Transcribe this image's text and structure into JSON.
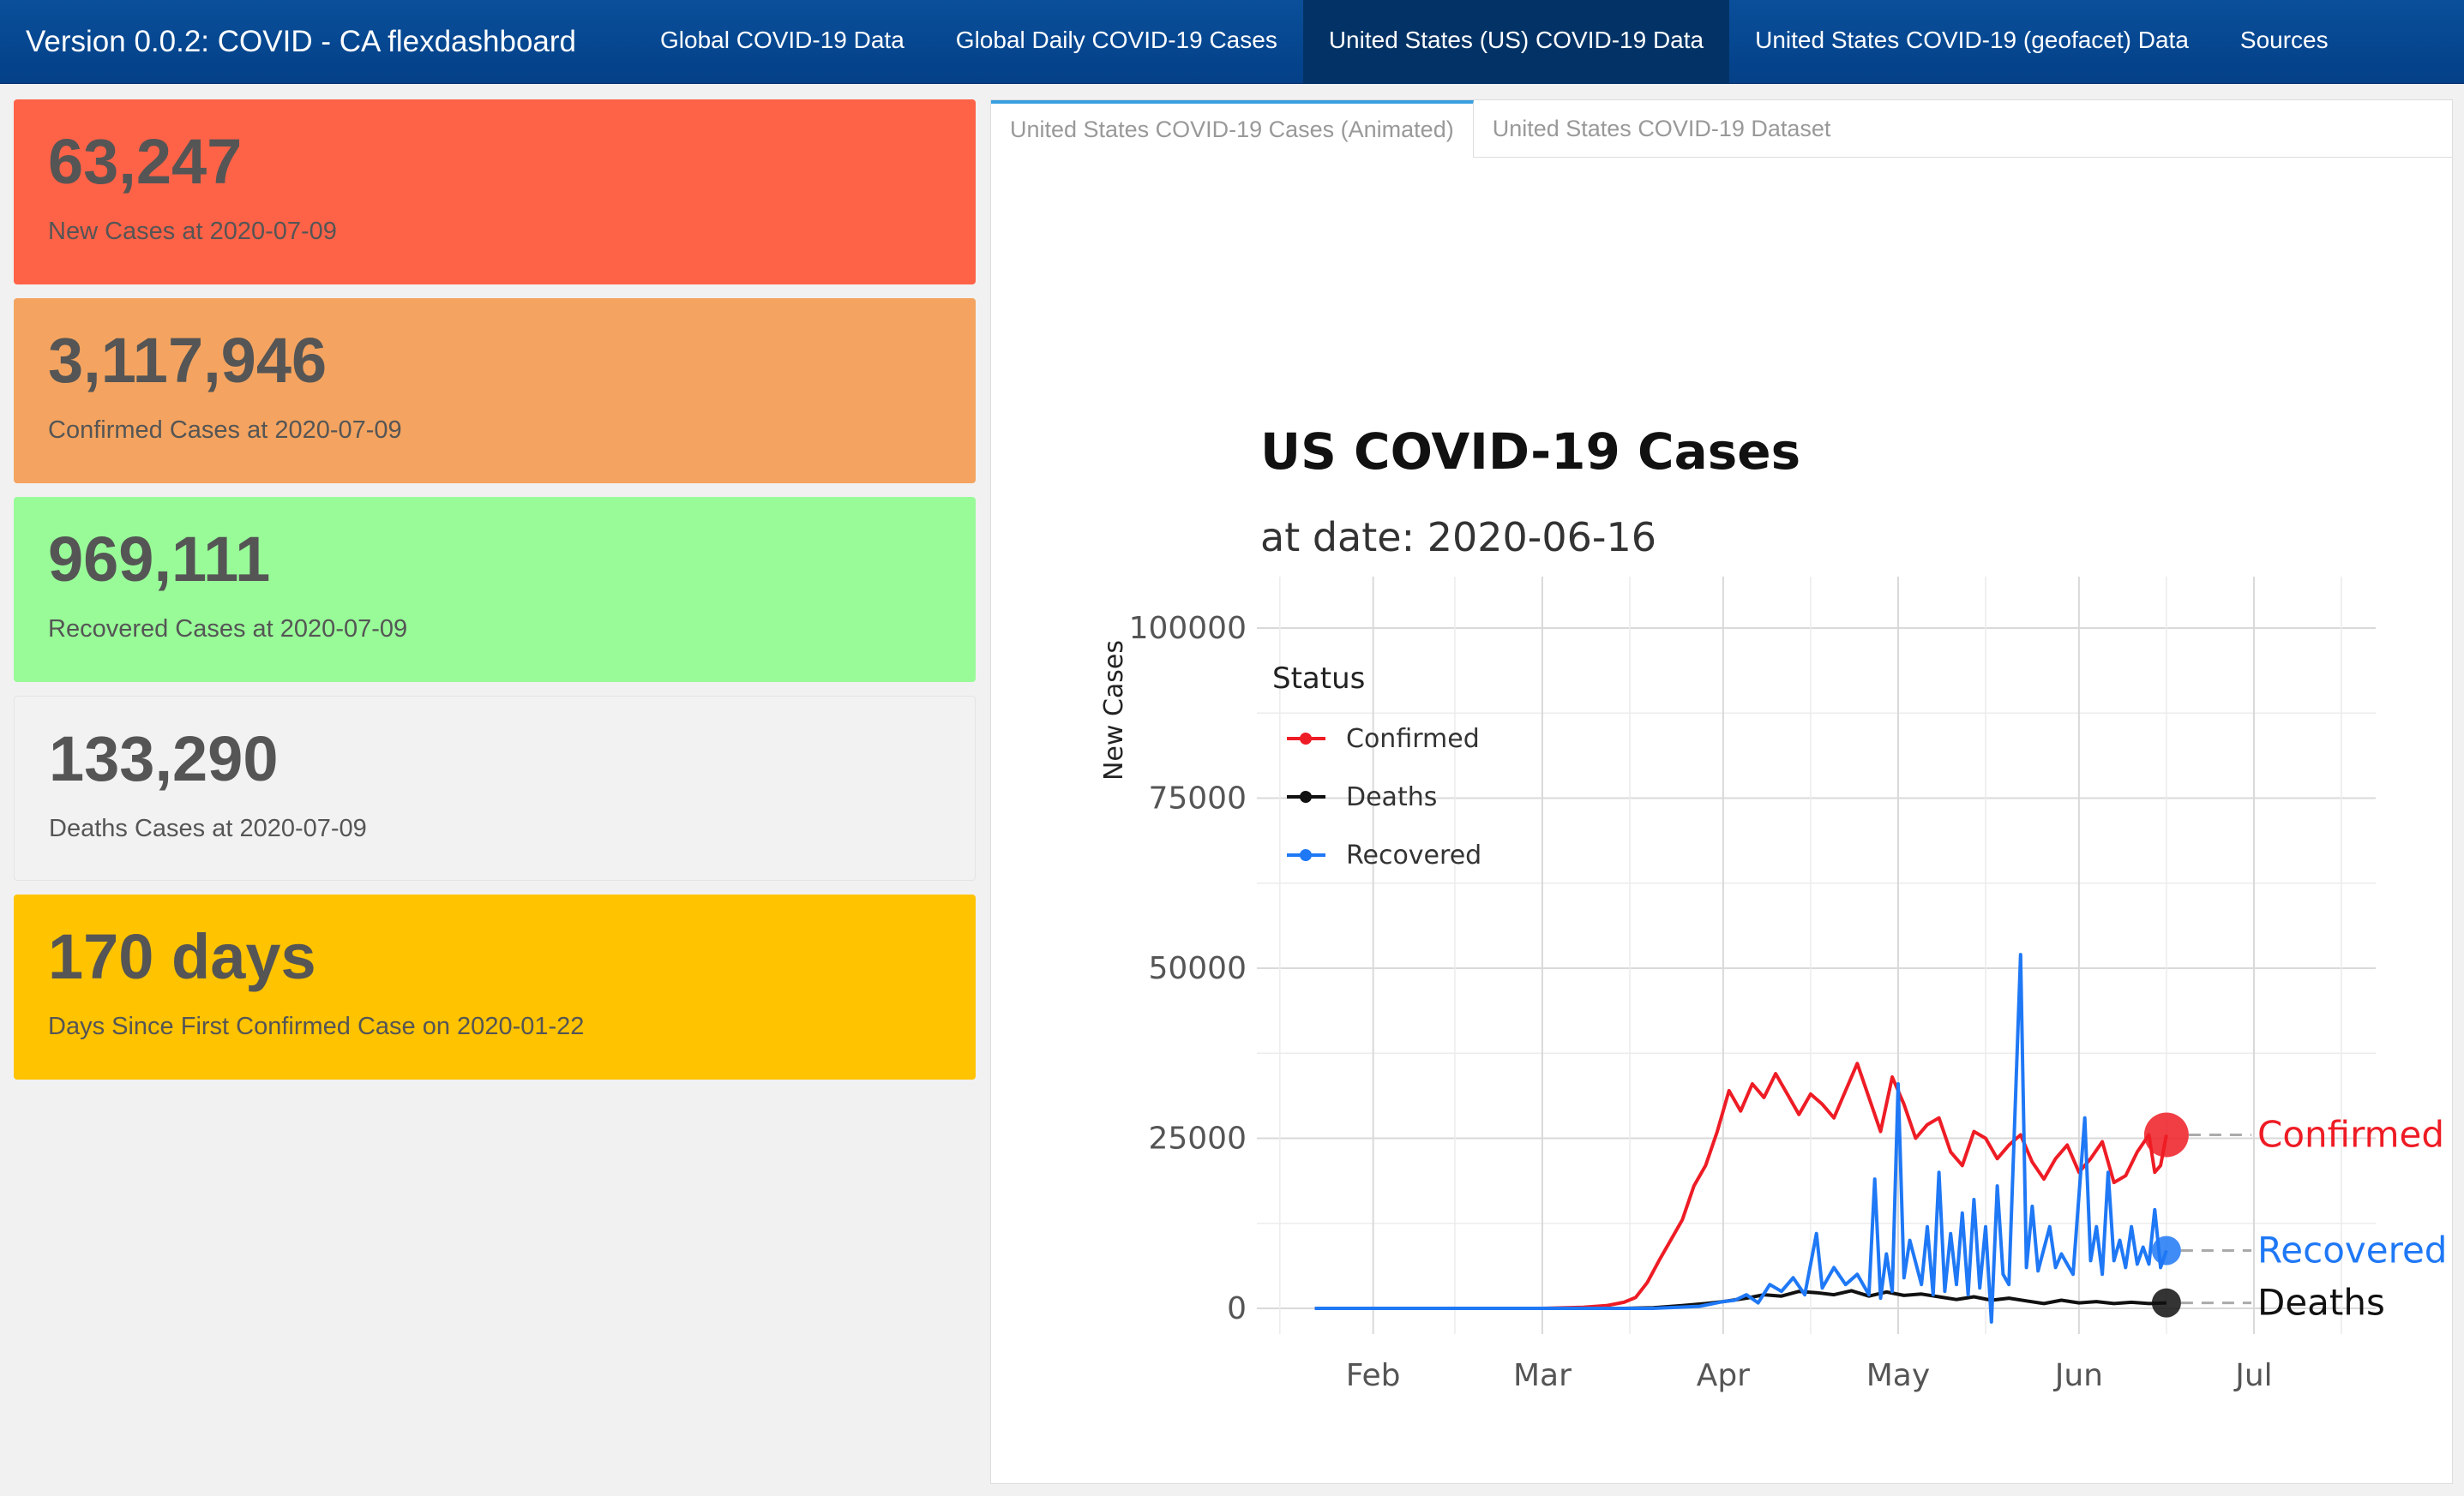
{
  "navbar": {
    "brand": "Version 0.0.2: COVID - CA flexdashboard",
    "items": [
      {
        "label": "Global COVID-19 Data",
        "active": false
      },
      {
        "label": "Global Daily COVID-19 Cases",
        "active": false
      },
      {
        "label": "United States (US) COVID-19 Data",
        "active": true
      },
      {
        "label": "United States COVID-19 (geofacet) Data",
        "active": false
      },
      {
        "label": "Sources",
        "active": false
      }
    ]
  },
  "valueboxes": [
    {
      "value": "63,247",
      "caption": "New Cases at 2020-07-09",
      "color": "#ff6347"
    },
    {
      "value": "3,117,946",
      "caption": "Confirmed Cases at 2020-07-09",
      "color": "#f4a460"
    },
    {
      "value": "969,111",
      "caption": "Recovered Cases at 2020-07-09",
      "color": "#98fb98"
    },
    {
      "value": "133,290",
      "caption": "Deaths Cases at 2020-07-09",
      "color": "#f2f2f2"
    },
    {
      "value": "170 days",
      "caption": "Days Since First Confirmed Case on 2020-01-22",
      "color": "#ffc300"
    }
  ],
  "tabs": [
    {
      "label": "United States COVID-19 Cases (Animated)",
      "active": true
    },
    {
      "label": "United States COVID-19 Dataset",
      "active": false
    }
  ],
  "chart_data": {
    "type": "line",
    "title": "US COVID-19 Cases",
    "subtitle": "at date: 2020-06-16",
    "ylabel": "New Cases",
    "xlabel": "",
    "ylim": [
      0,
      100000
    ],
    "yticks": [
      0,
      25000,
      50000,
      75000,
      100000
    ],
    "xticks": [
      {
        "label": "Feb",
        "date": "2020-02-01"
      },
      {
        "label": "Mar",
        "date": "2020-03-01"
      },
      {
        "label": "Apr",
        "date": "2020-04-01"
      },
      {
        "label": "May",
        "date": "2020-05-01"
      },
      {
        "label": "Jun",
        "date": "2020-06-01"
      },
      {
        "label": "Jul",
        "date": "2020-07-01"
      }
    ],
    "xlim": [
      "2020-01-15",
      "2020-07-16"
    ],
    "grid": true,
    "legend": {
      "title": "Status",
      "position": "top-left"
    },
    "series": [
      {
        "name": "Confirmed",
        "color": "#ee1c25",
        "points": [
          [
            "2020-01-22",
            0
          ],
          [
            "2020-03-01",
            0
          ],
          [
            "2020-03-08",
            150
          ],
          [
            "2020-03-12",
            400
          ],
          [
            "2020-03-15",
            900
          ],
          [
            "2020-03-17",
            1600
          ],
          [
            "2020-03-19",
            3800
          ],
          [
            "2020-03-21",
            7000
          ],
          [
            "2020-03-23",
            10000
          ],
          [
            "2020-03-25",
            13000
          ],
          [
            "2020-03-27",
            18000
          ],
          [
            "2020-03-29",
            21000
          ],
          [
            "2020-03-31",
            26000
          ],
          [
            "2020-04-02",
            32000
          ],
          [
            "2020-04-04",
            29000
          ],
          [
            "2020-04-06",
            33000
          ],
          [
            "2020-04-08",
            31000
          ],
          [
            "2020-04-10",
            34500
          ],
          [
            "2020-04-12",
            31500
          ],
          [
            "2020-04-14",
            28500
          ],
          [
            "2020-04-16",
            31500
          ],
          [
            "2020-04-18",
            30000
          ],
          [
            "2020-04-20",
            28000
          ],
          [
            "2020-04-22",
            32000
          ],
          [
            "2020-04-24",
            36000
          ],
          [
            "2020-04-26",
            31000
          ],
          [
            "2020-04-28",
            26000
          ],
          [
            "2020-04-30",
            34000
          ],
          [
            "2020-05-02",
            30000
          ],
          [
            "2020-05-04",
            25000
          ],
          [
            "2020-05-06",
            27000
          ],
          [
            "2020-05-08",
            28000
          ],
          [
            "2020-05-10",
            23000
          ],
          [
            "2020-05-12",
            21000
          ],
          [
            "2020-05-14",
            26000
          ],
          [
            "2020-05-16",
            25000
          ],
          [
            "2020-05-18",
            22000
          ],
          [
            "2020-05-20",
            24000
          ],
          [
            "2020-05-22",
            25500
          ],
          [
            "2020-05-24",
            21500
          ],
          [
            "2020-05-26",
            19000
          ],
          [
            "2020-05-28",
            22000
          ],
          [
            "2020-05-30",
            24000
          ],
          [
            "2020-06-01",
            20000
          ],
          [
            "2020-06-03",
            22000
          ],
          [
            "2020-06-05",
            24500
          ],
          [
            "2020-06-07",
            18500
          ],
          [
            "2020-06-09",
            19500
          ],
          [
            "2020-06-11",
            23000
          ],
          [
            "2020-06-13",
            25500
          ],
          [
            "2020-06-14",
            20000
          ],
          [
            "2020-06-15",
            21000
          ],
          [
            "2020-06-16",
            25500
          ]
        ]
      },
      {
        "name": "Recovered",
        "color": "#1f78f5",
        "points": [
          [
            "2020-01-22",
            0
          ],
          [
            "2020-03-20",
            0
          ],
          [
            "2020-03-28",
            300
          ],
          [
            "2020-04-01",
            1000
          ],
          [
            "2020-04-03",
            1200
          ],
          [
            "2020-04-05",
            2000
          ],
          [
            "2020-04-07",
            800
          ],
          [
            "2020-04-09",
            3500
          ],
          [
            "2020-04-11",
            2500
          ],
          [
            "2020-04-13",
            4500
          ],
          [
            "2020-04-15",
            2000
          ],
          [
            "2020-04-17",
            11000
          ],
          [
            "2020-04-18",
            3000
          ],
          [
            "2020-04-20",
            6000
          ],
          [
            "2020-04-22",
            3500
          ],
          [
            "2020-04-24",
            5000
          ],
          [
            "2020-04-26",
            2000
          ],
          [
            "2020-04-27",
            19000
          ],
          [
            "2020-04-28",
            1500
          ],
          [
            "2020-04-29",
            8000
          ],
          [
            "2020-04-30",
            2500
          ],
          [
            "2020-05-01",
            33000
          ],
          [
            "2020-05-02",
            4500
          ],
          [
            "2020-05-03",
            10000
          ],
          [
            "2020-05-05",
            3500
          ],
          [
            "2020-05-06",
            12000
          ],
          [
            "2020-05-07",
            2000
          ],
          [
            "2020-05-08",
            20000
          ],
          [
            "2020-05-09",
            2500
          ],
          [
            "2020-05-10",
            11000
          ],
          [
            "2020-05-11",
            3500
          ],
          [
            "2020-05-12",
            14000
          ],
          [
            "2020-05-13",
            2000
          ],
          [
            "2020-05-14",
            16000
          ],
          [
            "2020-05-15",
            3000
          ],
          [
            "2020-05-16",
            12000
          ],
          [
            "2020-05-17",
            -2000
          ],
          [
            "2020-05-18",
            18000
          ],
          [
            "2020-05-19",
            5000
          ],
          [
            "2020-05-20",
            3500
          ],
          [
            "2020-05-22",
            52000
          ],
          [
            "2020-05-23",
            6000
          ],
          [
            "2020-05-24",
            15000
          ],
          [
            "2020-05-25",
            5500
          ],
          [
            "2020-05-27",
            12000
          ],
          [
            "2020-05-28",
            6000
          ],
          [
            "2020-05-29",
            8000
          ],
          [
            "2020-05-31",
            5000
          ],
          [
            "2020-06-02",
            28000
          ],
          [
            "2020-06-03",
            7000
          ],
          [
            "2020-06-04",
            12000
          ],
          [
            "2020-06-05",
            5000
          ],
          [
            "2020-06-06",
            20000
          ],
          [
            "2020-06-07",
            7000
          ],
          [
            "2020-06-08",
            10000
          ],
          [
            "2020-06-09",
            6000
          ],
          [
            "2020-06-10",
            12000
          ],
          [
            "2020-06-11",
            6500
          ],
          [
            "2020-06-12",
            9000
          ],
          [
            "2020-06-13",
            6500
          ],
          [
            "2020-06-14",
            14500
          ],
          [
            "2020-06-15",
            6000
          ],
          [
            "2020-06-16",
            8500
          ]
        ]
      },
      {
        "name": "Deaths",
        "color": "#111111",
        "points": [
          [
            "2020-01-22",
            0
          ],
          [
            "2020-03-15",
            0
          ],
          [
            "2020-03-20",
            100
          ],
          [
            "2020-03-25",
            400
          ],
          [
            "2020-03-29",
            700
          ],
          [
            "2020-04-01",
            1000
          ],
          [
            "2020-04-05",
            1500
          ],
          [
            "2020-04-08",
            2000
          ],
          [
            "2020-04-11",
            1800
          ],
          [
            "2020-04-14",
            2500
          ],
          [
            "2020-04-17",
            2300
          ],
          [
            "2020-04-20",
            2000
          ],
          [
            "2020-04-23",
            2600
          ],
          [
            "2020-04-26",
            1800
          ],
          [
            "2020-04-29",
            2400
          ],
          [
            "2020-05-02",
            1900
          ],
          [
            "2020-05-05",
            2100
          ],
          [
            "2020-05-08",
            1700
          ],
          [
            "2020-05-11",
            1300
          ],
          [
            "2020-05-14",
            1700
          ],
          [
            "2020-05-17",
            1200
          ],
          [
            "2020-05-20",
            1500
          ],
          [
            "2020-05-23",
            1100
          ],
          [
            "2020-05-26",
            700
          ],
          [
            "2020-05-29",
            1200
          ],
          [
            "2020-06-01",
            800
          ],
          [
            "2020-06-04",
            1000
          ],
          [
            "2020-06-07",
            700
          ],
          [
            "2020-06-10",
            900
          ],
          [
            "2020-06-13",
            700
          ],
          [
            "2020-06-16",
            800
          ]
        ]
      }
    ],
    "end_labels": [
      {
        "series": "Confirmed",
        "label": "Confirmed"
      },
      {
        "series": "Recovered",
        "label": "Recovered"
      },
      {
        "series": "Deaths",
        "label": "Deaths"
      }
    ]
  }
}
